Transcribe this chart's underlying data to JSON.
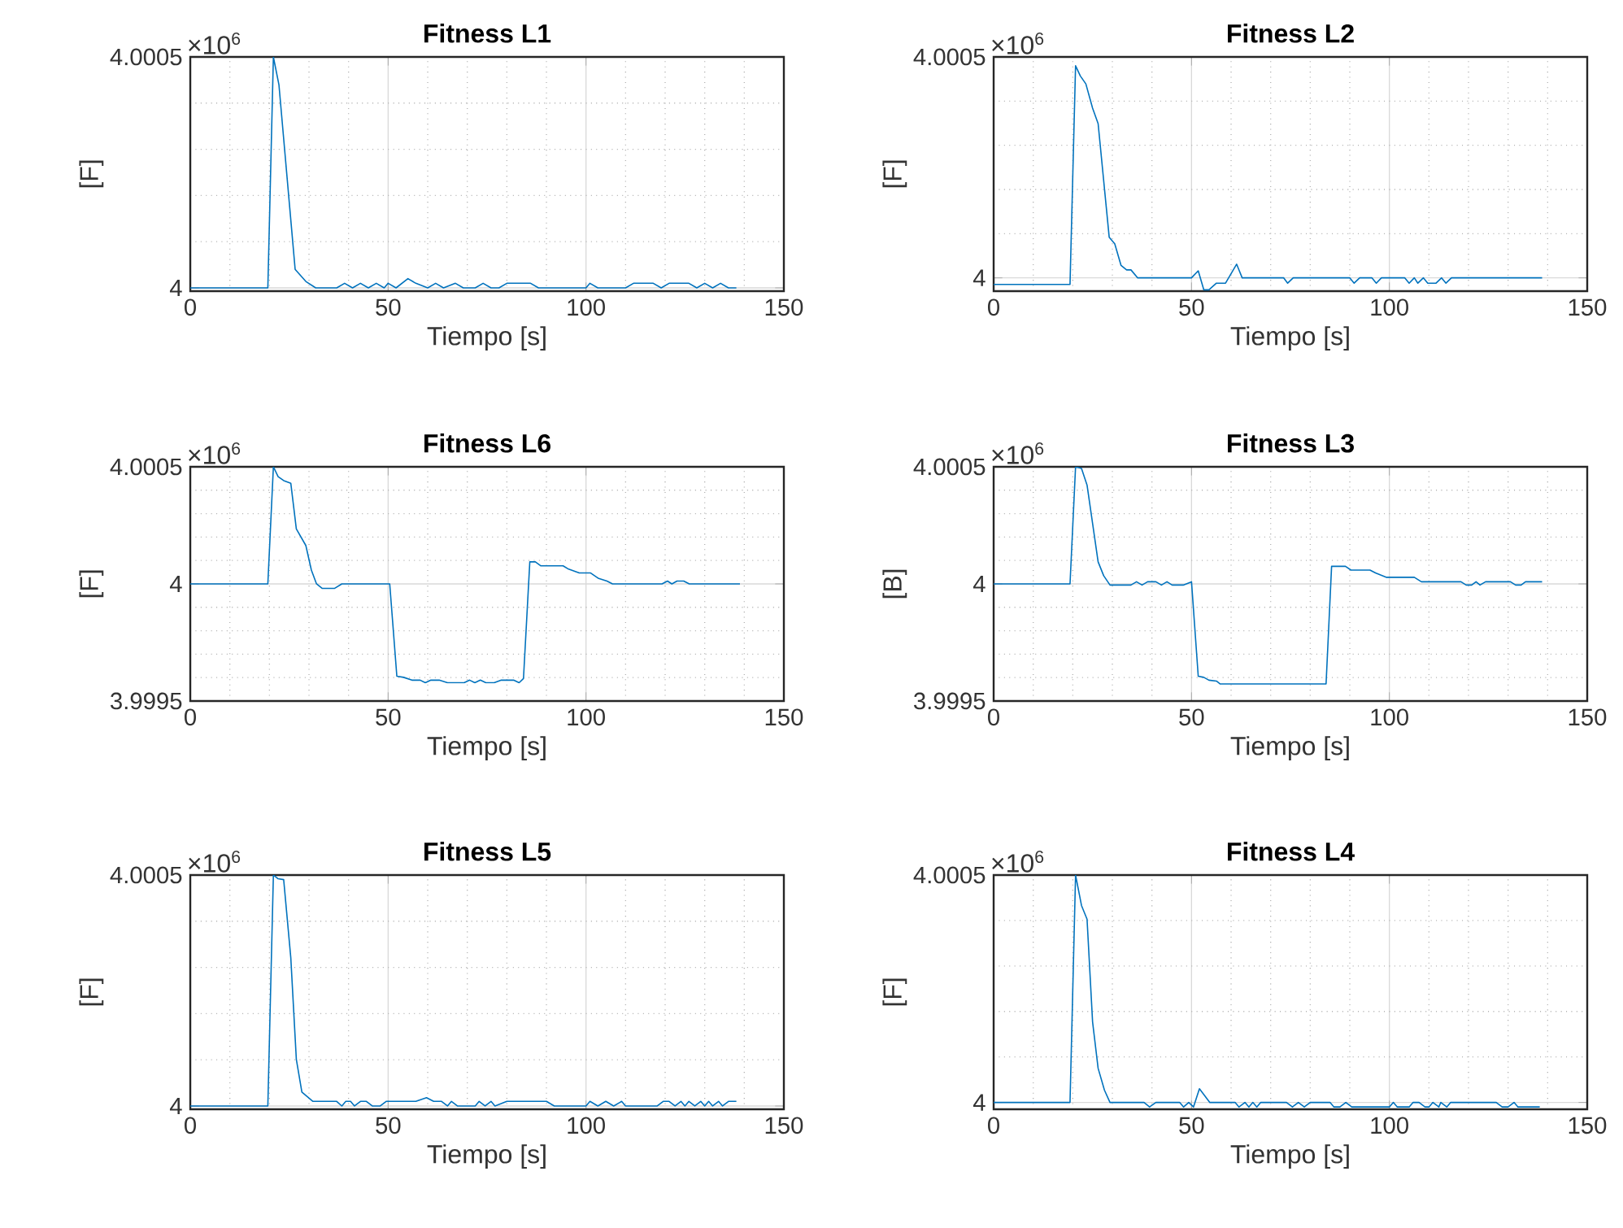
{
  "chart_data": [
    {
      "type": "line",
      "title": "Fitness L1",
      "xlabel": "Tiempo [s]",
      "ylabel": "[F]",
      "annotations": [
        "×10$^{6}$"
      ],
      "color": "#0072bd",
      "grid": true,
      "xlim": [
        0,
        150
      ],
      "xticks": [
        0,
        50,
        100,
        150
      ],
      "ylim": [
        3.999993,
        4.0005
      ],
      "yticks": [
        4,
        4.0005
      ],
      "x": [
        0,
        19.6,
        21,
        22.4,
        26.5,
        29.2,
        31.7,
        37,
        39,
        41,
        43,
        45,
        47,
        49,
        50,
        52,
        55,
        57,
        60,
        62,
        64,
        67,
        69,
        72,
        74,
        76,
        78,
        80,
        86,
        88,
        100,
        101,
        103,
        110,
        112,
        117,
        119,
        121,
        126,
        128,
        130,
        132,
        134,
        136,
        138
      ],
      "values": [
        4,
        4,
        4.0005,
        4.00044,
        4.00004,
        4.000014,
        4,
        4,
        4.00001,
        4,
        4.00001,
        4,
        4.00001,
        4,
        4.00001,
        4,
        4.00002,
        4.00001,
        4,
        4.00001,
        4,
        4.00001,
        4,
        4,
        4.00001,
        4,
        4,
        4.00001,
        4.00001,
        4,
        4,
        4.00001,
        4,
        4,
        4.00001,
        4.00001,
        4,
        4.00001,
        4.00001,
        4,
        4.00001,
        4,
        4.00001,
        4,
        4
      ]
    },
    {
      "type": "line",
      "title": "Fitness L2",
      "xlabel": "Tiempo [s]",
      "ylabel": "[F]",
      "annotations": [
        "×10$^{6}$"
      ],
      "color": "#0072bd",
      "grid": true,
      "xlim": [
        0,
        150
      ],
      "xticks": [
        0,
        50,
        100,
        150
      ],
      "ylim": [
        3.99997,
        4.0005
      ],
      "yticks": [
        4,
        4.0005
      ],
      "x": [
        0,
        19.3,
        20.7,
        21.9,
        23.3,
        25,
        26.4,
        29.2,
        30.6,
        32.2,
        33.6,
        34.7,
        36.4,
        50,
        51.7,
        53.1,
        54.4,
        56.3,
        58.6,
        61.4,
        62.8,
        73.3,
        74.3,
        75.7,
        90,
        91.1,
        92.5,
        95.6,
        96.7,
        98,
        103.9,
        105,
        106.3,
        107.2,
        108.6,
        109.7,
        111.8,
        113.2,
        114.3,
        115.7,
        138.6
      ],
      "values": [
        3.999985,
        3.999985,
        4.00048,
        4.000457,
        4.000439,
        4.000384,
        4.000349,
        4.000092,
        4.000077,
        4.000028,
        4.000018,
        4.000018,
        4,
        4,
        4.000016,
        3.999973,
        3.999973,
        3.999988,
        3.999988,
        4.000031,
        4,
        4,
        3.999988,
        4,
        4,
        3.999988,
        4,
        4,
        3.999988,
        4,
        4,
        3.999988,
        4,
        3.999988,
        4,
        3.999988,
        3.999988,
        4,
        3.999988,
        4,
        4
      ]
    },
    {
      "type": "line",
      "title": "Fitness L6",
      "xlabel": "Tiempo [s]",
      "ylabel": "[F]",
      "annotations": [
        "×10$^{6}$"
      ],
      "color": "#0072bd",
      "grid": true,
      "xlim": [
        0,
        150
      ],
      "xticks": [
        0,
        50,
        100,
        150
      ],
      "ylim": [
        3.9995,
        4.0005
      ],
      "yticks": [
        3.9995,
        4,
        4.0005
      ],
      "x": [
        0,
        19.6,
        21,
        22.2,
        23.6,
        25.4,
        26.8,
        29.2,
        30.6,
        31.9,
        33.3,
        36.5,
        38.3,
        50.4,
        52.2,
        53.9,
        56,
        58.1,
        59.4,
        60.8,
        62.9,
        65,
        69.2,
        70.6,
        71.9,
        73.3,
        74.7,
        76.8,
        78.6,
        81.7,
        83.1,
        84.2,
        85.8,
        87.2,
        88.6,
        94.2,
        95.6,
        98.3,
        101.1,
        103.2,
        105.3,
        106.7,
        119.2,
        120.6,
        121.7,
        123,
        124.7,
        126.1,
        138.9
      ],
      "values": [
        4,
        4,
        4.0005,
        4.000458,
        4.000441,
        4.00043,
        4.000235,
        4.000164,
        4.000059,
        4,
        3.999981,
        3.999981,
        4,
        4,
        3.999606,
        3.999601,
        3.999589,
        3.999589,
        3.999578,
        3.999589,
        3.999589,
        3.999578,
        3.999578,
        3.999589,
        3.999578,
        3.999589,
        3.999578,
        3.999578,
        3.999589,
        3.999589,
        3.999578,
        3.999596,
        4.000094,
        4.000094,
        4.000077,
        4.000077,
        4.000063,
        4.000047,
        4.000047,
        4.000023,
        4.000012,
        4,
        4,
        4.000012,
        4,
        4.000012,
        4.000012,
        4,
        4
      ]
    },
    {
      "type": "line",
      "title": "Fitness L3",
      "xlabel": "Tiempo [s]",
      "ylabel": "[B]",
      "annotations": [
        "×10$^{6}$"
      ],
      "color": "#0072bd",
      "grid": true,
      "xlim": [
        0,
        150
      ],
      "xticks": [
        0,
        50,
        100,
        150
      ],
      "ylim": [
        3.9995,
        4.0005
      ],
      "yticks": [
        3.9995,
        4,
        4.0005
      ],
      "x": [
        0,
        19.3,
        20.7,
        22.2,
        23.6,
        25,
        26.4,
        27.8,
        29.4,
        34.7,
        36.1,
        37.5,
        38.9,
        41,
        42.4,
        43.8,
        45.1,
        47.9,
        50,
        51.7,
        53.1,
        54.4,
        56.3,
        57.2,
        84,
        85.4,
        88.9,
        90.3,
        95.1,
        96.5,
        99.3,
        106.3,
        108.1,
        118.1,
        119.4,
        120.8,
        121.9,
        122.9,
        124.3,
        130.6,
        131.9,
        133.3,
        134.4,
        138.6
      ],
      "values": [
        4,
        4,
        4.0005,
        4.000493,
        4.000422,
        4.000258,
        4.000094,
        4.000035,
        3.999995,
        3.999995,
        4.000009,
        3.999995,
        4.000009,
        4.000009,
        3.999995,
        4.000009,
        3.999995,
        3.999995,
        4.000009,
        3.999606,
        3.999601,
        3.999589,
        3.999585,
        3.999573,
        3.999573,
        4.000075,
        4.000075,
        4.000059,
        4.000059,
        4.000047,
        4.000028,
        4.000028,
        4.000009,
        4.000009,
        3.999995,
        3.999995,
        4.000009,
        3.999995,
        4.000009,
        4.000009,
        3.999995,
        3.999995,
        4.000009,
        4.000009
      ]
    },
    {
      "type": "line",
      "title": "Fitness L5",
      "xlabel": "Tiempo [s]",
      "ylabel": "[F]",
      "annotations": [
        "×10$^{6}$"
      ],
      "color": "#0072bd",
      "grid": true,
      "xlim": [
        0,
        150
      ],
      "xticks": [
        0,
        50,
        100,
        150
      ],
      "ylim": [
        3.999993,
        4.0005
      ],
      "yticks": [
        4,
        4.0005
      ],
      "x": [
        0,
        19.6,
        21,
        22.2,
        23.6,
        25.4,
        26.8,
        28.2,
        31,
        37,
        38.3,
        39.3,
        40.5,
        41.5,
        43,
        44.5,
        46,
        48,
        49.5,
        57,
        59.7,
        61.5,
        63.5,
        65,
        66,
        67.5,
        72,
        73,
        74.5,
        76,
        77,
        80,
        90,
        92,
        100,
        101,
        103,
        105,
        107,
        109,
        110,
        118,
        119.5,
        121,
        122.5,
        124,
        125,
        126,
        127.5,
        129,
        130,
        131,
        132,
        133.5,
        134.5,
        136,
        138
      ],
      "values": [
        4,
        4,
        4.0005,
        4.000492,
        4.00049,
        4.000321,
        4.000101,
        4.00003,
        4.00001,
        4.00001,
        4,
        4.00001,
        4.00001,
        4,
        4.00001,
        4.00001,
        4,
        4,
        4.00001,
        4.00001,
        4.000018,
        4.00001,
        4.00001,
        4,
        4.00001,
        4,
        4,
        4.00001,
        4,
        4.00001,
        4,
        4.00001,
        4.00001,
        4,
        4,
        4.00001,
        4,
        4.00001,
        4,
        4.00001,
        4,
        4,
        4.00001,
        4.00001,
        4,
        4.00001,
        4,
        4.00001,
        4,
        4.00001,
        4,
        4.00001,
        4,
        4.00001,
        4,
        4.00001,
        4.00001
      ]
    },
    {
      "type": "line",
      "title": "Fitness L4",
      "xlabel": "Tiempo [s]",
      "ylabel": "[F]",
      "annotations": [
        "×10$^{6}$"
      ],
      "color": "#0072bd",
      "grid": true,
      "xlim": [
        0,
        150
      ],
      "xticks": [
        0,
        50,
        100,
        150
      ],
      "ylim": [
        3.999985,
        4.0005
      ],
      "yticks": [
        4,
        4.0005
      ],
      "x": [
        0,
        19.3,
        20.7,
        22.2,
        23.6,
        25,
        26.4,
        28,
        29.4,
        38,
        39.4,
        41,
        47,
        48,
        49.3,
        50.5,
        52,
        54.6,
        61,
        62,
        63.5,
        64.5,
        65.5,
        66.5,
        67.5,
        74,
        75.5,
        77,
        78.5,
        80,
        85,
        86,
        87.5,
        89,
        90.5,
        92,
        100,
        101,
        102,
        105,
        106,
        107.5,
        109,
        110,
        111,
        112.5,
        113,
        114.5,
        115.5,
        127,
        128.5,
        130,
        131.5,
        132.5,
        138
      ],
      "values": [
        4,
        4,
        4.0005,
        4.000433,
        4.000403,
        4.000177,
        4.000075,
        4.000027,
        4,
        4,
        3.99999,
        4,
        4,
        3.99999,
        4,
        3.99999,
        4.00003,
        4,
        4,
        3.99999,
        4,
        3.99999,
        4,
        3.99999,
        4,
        4,
        3.99999,
        4,
        3.99999,
        4,
        4,
        3.99999,
        3.99999,
        4,
        3.99999,
        3.99999,
        3.99999,
        4,
        3.99999,
        3.99999,
        4,
        4,
        3.99999,
        3.99999,
        4,
        3.99999,
        4,
        3.99999,
        4,
        4,
        3.99999,
        3.99999,
        4,
        3.99999,
        3.99999
      ]
    }
  ]
}
